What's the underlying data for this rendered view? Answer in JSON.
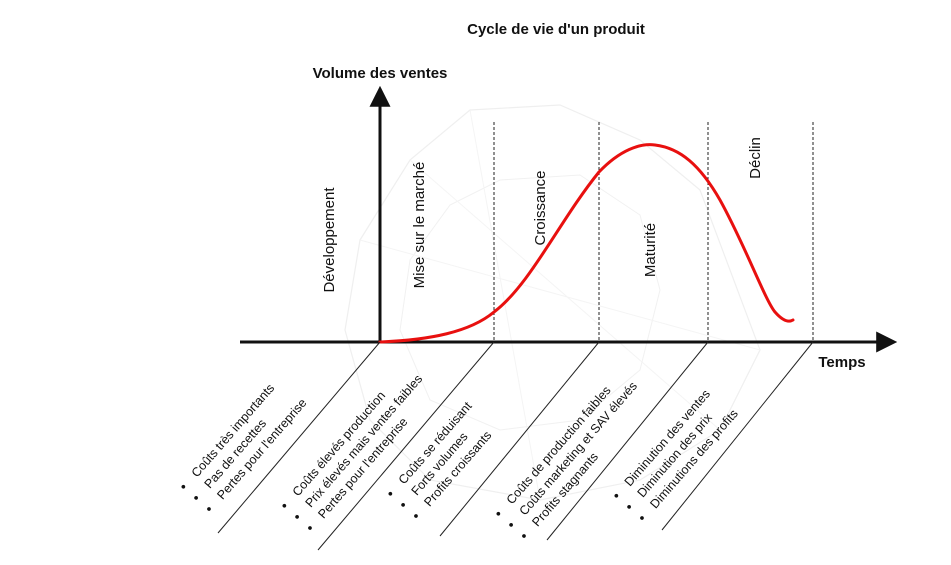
{
  "title": "Cycle de vie d'un produit",
  "axes": {
    "y_label": "Volume des ventes",
    "x_label": "Temps"
  },
  "phases": [
    {
      "label": "Développement",
      "notes": [
        "Coûts très importants",
        "Pas de recettes",
        "Pertes pour l'entreprise"
      ]
    },
    {
      "label": "Mise sur le marché",
      "notes": [
        "Coûts élevés production",
        "Prix élevés mais ventes faibles",
        "Pertes pour l'entreprise"
      ]
    },
    {
      "label": "Croissance",
      "notes": [
        "Coûts se réduisant",
        "Forts volumes",
        "Profits croissants"
      ]
    },
    {
      "label": "Maturité",
      "notes": [
        "Coûts de production faibles",
        "Coûts marketing et SAV élevés",
        "Profits stagnants"
      ]
    },
    {
      "label": "Déclin",
      "notes": [
        "Diminution des ventes",
        "Diminution des prix",
        "Diminutions des profits"
      ]
    }
  ],
  "bullet_glyph": "•",
  "colors": {
    "curve": "#e8100f",
    "axis": "#111111",
    "divider": "#222222",
    "watermark": "#d9d9d9"
  }
}
